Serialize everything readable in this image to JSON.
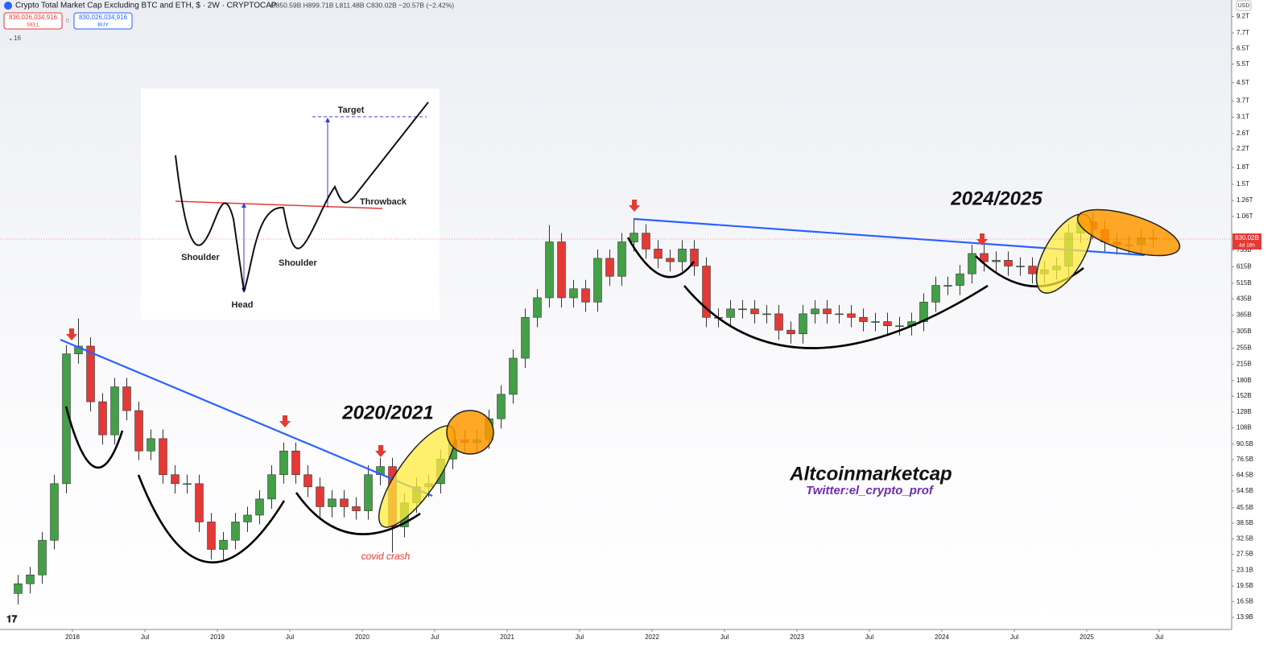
{
  "header": {
    "title": "Crypto Total Market Cap Excluding BTC and ETH, $ · 2W · CRYPTOCAP",
    "ohlc": "O850.59B H899.71B L811.48B C830.02B −20.57B (−2.42%)",
    "sell_price": "830,026,034,916",
    "sell": "SELL",
    "buy_price": "830,026,034,916",
    "buy": "BUY",
    "indicator_count": "16",
    "currency": "USD"
  },
  "annotations": {
    "cycle1": "2020/2021",
    "cycle2": "2024/2025",
    "brand": "Altcoinmarketcap",
    "twitter": "Twitter:el_crypto_prof",
    "covid": "covid crash"
  },
  "inset": {
    "target": "Target",
    "throwback": "Throwback",
    "shoulder_left": "Shoulder",
    "shoulder_right": "Shoulder",
    "head": "Head"
  },
  "chart_data": {
    "type": "candlestick",
    "log": true,
    "grid": false,
    "up_color": "#43a047",
    "down_color": "#e53935",
    "price_tag": "830.02B",
    "countdown": "4d 16h",
    "xlim": [
      "2017-07",
      "2026-01"
    ],
    "xticks": [
      {
        "value": "2018-01",
        "label": "2018"
      },
      {
        "value": "2018-07",
        "label": "Jul"
      },
      {
        "value": "2019-01",
        "label": "2019"
      },
      {
        "value": "2019-07",
        "label": "Jul"
      },
      {
        "value": "2020-01",
        "label": "2020"
      },
      {
        "value": "2020-07",
        "label": "Jul"
      },
      {
        "value": "2021-01",
        "label": "2021"
      },
      {
        "value": "2021-07",
        "label": "Jul"
      },
      {
        "value": "2022-01",
        "label": "2022"
      },
      {
        "value": "2022-07",
        "label": "Jul"
      },
      {
        "value": "2023-01",
        "label": "2023"
      },
      {
        "value": "2023-07",
        "label": "Jul"
      },
      {
        "value": "2024-01",
        "label": "2024"
      },
      {
        "value": "2024-07",
        "label": "Jul"
      },
      {
        "value": "2025-01",
        "label": "2025"
      },
      {
        "value": "2025-07",
        "label": "Jul"
      }
    ],
    "ylim": [
      12.2,
      11000
    ],
    "yticks": [
      {
        "value": 13.9,
        "label": "13.9B"
      },
      {
        "value": 16.5,
        "label": "16.5B"
      },
      {
        "value": 19.5,
        "label": "19.5B"
      },
      {
        "value": 23.1,
        "label": "23.1B"
      },
      {
        "value": 27.5,
        "label": "27.5B"
      },
      {
        "value": 32.5,
        "label": "32.5B"
      },
      {
        "value": 38.5,
        "label": "38.5B"
      },
      {
        "value": 45.5,
        "label": "45.5B"
      },
      {
        "value": 54.5,
        "label": "54.5B"
      },
      {
        "value": 64.5,
        "label": "64.5B"
      },
      {
        "value": 76.5,
        "label": "76.5B"
      },
      {
        "value": 90.5,
        "label": "90.5B"
      },
      {
        "value": 108,
        "label": "108B"
      },
      {
        "value": 128,
        "label": "128B"
      },
      {
        "value": 152,
        "label": "152B"
      },
      {
        "value": 180,
        "label": "180B"
      },
      {
        "value": 215,
        "label": "215B"
      },
      {
        "value": 255,
        "label": "255B"
      },
      {
        "value": 305,
        "label": "305B"
      },
      {
        "value": 365,
        "label": "365B"
      },
      {
        "value": 435,
        "label": "435B"
      },
      {
        "value": 515,
        "label": "515B"
      },
      {
        "value": 615,
        "label": "615B"
      },
      {
        "value": 735,
        "label": "735B"
      },
      {
        "value": 1060,
        "label": "1.06T"
      },
      {
        "value": 1260,
        "label": "1.26T"
      },
      {
        "value": 1500,
        "label": "1.5T"
      },
      {
        "value": 1800,
        "label": "1.8T"
      },
      {
        "value": 2200,
        "label": "2.2T"
      },
      {
        "value": 2600,
        "label": "2.6T"
      },
      {
        "value": 3100,
        "label": "3.1T"
      },
      {
        "value": 3700,
        "label": "3.7T"
      },
      {
        "value": 4500,
        "label": "4.5T"
      },
      {
        "value": 5500,
        "label": "5.5T"
      },
      {
        "value": 6500,
        "label": "6.5T"
      },
      {
        "value": 7700,
        "label": "7.7T"
      },
      {
        "value": 9200,
        "label": "9.2T"
      }
    ],
    "x": [
      "2017-08",
      "2017-09",
      "2017-10",
      "2017-11",
      "2017-12",
      "2018-01",
      "2018-02",
      "2018-03",
      "2018-04",
      "2018-05",
      "2018-06",
      "2018-07",
      "2018-08",
      "2018-09",
      "2018-10",
      "2018-11",
      "2018-12",
      "2019-01",
      "2019-02",
      "2019-03",
      "2019-04",
      "2019-05",
      "2019-06",
      "2019-07",
      "2019-08",
      "2019-09",
      "2019-10",
      "2019-11",
      "2019-12",
      "2020-01",
      "2020-02",
      "2020-03",
      "2020-04",
      "2020-05",
      "2020-06",
      "2020-07",
      "2020-08",
      "2020-09",
      "2020-10",
      "2020-11",
      "2020-12",
      "2021-01",
      "2021-02",
      "2021-03",
      "2021-04",
      "2021-05",
      "2021-06",
      "2021-07",
      "2021-08",
      "2021-09",
      "2021-10",
      "2021-11",
      "2021-12",
      "2022-01",
      "2022-02",
      "2022-03",
      "2022-04",
      "2022-05",
      "2022-06",
      "2022-07",
      "2022-08",
      "2022-09",
      "2022-10",
      "2022-11",
      "2022-12",
      "2023-01",
      "2023-02",
      "2023-03",
      "2023-04",
      "2023-05",
      "2023-06",
      "2023-07",
      "2023-08",
      "2023-09",
      "2023-10",
      "2023-11",
      "2023-12",
      "2024-01",
      "2024-02",
      "2024-03",
      "2024-04",
      "2024-05",
      "2024-06",
      "2024-07",
      "2024-08",
      "2024-09",
      "2024-10",
      "2024-11",
      "2024-12",
      "2025-01",
      "2025-02",
      "2025-03",
      "2025-04",
      "2025-05",
      "2025-06"
    ],
    "open": [
      18,
      20,
      22,
      32,
      59,
      240,
      261,
      143,
      100,
      168,
      130,
      84,
      96,
      65,
      59,
      59,
      39,
      29,
      32,
      39,
      42,
      50,
      65,
      84,
      65,
      57,
      46,
      50,
      46,
      44,
      65,
      71,
      37,
      48,
      57,
      59,
      77,
      95,
      92,
      95,
      119,
      155,
      229,
      356,
      440,
      805,
      440,
      485,
      420,
      674,
      555,
      805,
      885,
      745,
      674,
      650,
      745,
      620,
      356,
      356,
      390,
      390,
      370,
      370,
      310,
      298,
      370,
      390,
      370,
      370,
      356,
      340,
      340,
      325,
      325,
      340,
      420,
      503,
      503,
      570,
      710,
      650,
      660,
      620,
      620,
      570,
      595,
      620,
      885,
      1000,
      920,
      805,
      780,
      780,
      840
    ],
    "high": [
      22,
      24,
      35,
      65,
      264,
      352,
      287,
      157,
      185,
      185,
      143,
      106,
      106,
      72,
      65,
      65,
      43,
      35,
      43,
      46,
      55,
      72,
      92,
      92,
      72,
      63,
      55,
      55,
      51,
      72,
      78,
      78,
      53,
      63,
      65,
      85,
      105,
      105,
      105,
      131,
      171,
      252,
      392,
      484,
      965,
      886,
      534,
      534,
      741,
      741,
      886,
      1040,
      974,
      820,
      741,
      820,
      820,
      682,
      392,
      429,
      429,
      429,
      407,
      407,
      341,
      407,
      429,
      429,
      407,
      407,
      392,
      374,
      374,
      358,
      374,
      462,
      553,
      553,
      627,
      781,
      781,
      726,
      726,
      682,
      682,
      655,
      682,
      974,
      1110,
      1100,
      1012,
      886,
      858,
      924,
      924
    ],
    "low": [
      16,
      18,
      20,
      29,
      53,
      216,
      129,
      90,
      90,
      117,
      76,
      76,
      59,
      53,
      53,
      35,
      26,
      26,
      29,
      35,
      38,
      45,
      59,
      59,
      51,
      41,
      41,
      41,
      40,
      40,
      58,
      28,
      33,
      43,
      51,
      53,
      69,
      83,
      83,
      86,
      107,
      140,
      206,
      320,
      396,
      396,
      396,
      378,
      378,
      500,
      500,
      725,
      671,
      607,
      585,
      585,
      558,
      320,
      320,
      320,
      351,
      333,
      333,
      279,
      268,
      268,
      333,
      333,
      333,
      320,
      306,
      306,
      293,
      293,
      293,
      306,
      378,
      453,
      453,
      513,
      585,
      585,
      558,
      558,
      513,
      513,
      536,
      558,
      797,
      828,
      725,
      702,
      702,
      702,
      756
    ],
    "close": [
      20,
      22,
      32,
      59,
      240,
      261,
      143,
      100,
      168,
      130,
      84,
      96,
      65,
      59,
      59,
      39,
      29,
      32,
      39,
      42,
      50,
      65,
      84,
      65,
      57,
      46,
      50,
      46,
      44,
      65,
      71,
      37,
      48,
      57,
      59,
      77,
      95,
      92,
      95,
      119,
      155,
      229,
      356,
      440,
      805,
      440,
      485,
      420,
      674,
      555,
      805,
      885,
      745,
      674,
      650,
      745,
      620,
      356,
      356,
      390,
      390,
      370,
      370,
      310,
      298,
      370,
      390,
      370,
      370,
      356,
      340,
      340,
      325,
      325,
      340,
      420,
      503,
      503,
      570,
      710,
      650,
      660,
      620,
      620,
      570,
      595,
      620,
      885,
      1000,
      920,
      805,
      780,
      780,
      840,
      830
    ]
  }
}
